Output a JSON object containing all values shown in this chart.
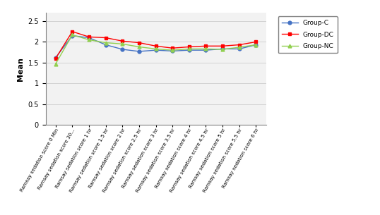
{
  "categories": [
    "Ramsay sedation score 0 Min",
    "Ramsay sedation score 30...",
    "Ramsay sedation score 1 hr",
    "Ramsay sedation score 1.5 hr",
    "Ramsay sedation score 2 hr",
    "Ramsay sedation score 2.5 hr",
    "Ramsay sedation score 3 hr",
    "Ramsay sedation score 3.5 hr",
    "Ramsay sedation score 4 hr",
    "Ramsay sedation score 4.5 hr",
    "Ramsay sedation score 5 hr",
    "Ramsay sedation score 5.5 hr",
    "Ramsay sedation score 6 hr"
  ],
  "group_C": [
    1.62,
    2.15,
    2.1,
    1.93,
    1.82,
    1.77,
    1.8,
    1.78,
    1.8,
    1.8,
    1.83,
    1.83,
    1.93
  ],
  "group_DC": [
    1.6,
    2.25,
    2.12,
    2.1,
    2.02,
    1.98,
    1.9,
    1.85,
    1.88,
    1.9,
    1.9,
    1.93,
    2.0
  ],
  "group_NC": [
    1.47,
    2.17,
    2.05,
    1.98,
    1.95,
    1.88,
    1.83,
    1.8,
    1.83,
    1.83,
    1.82,
    1.87,
    1.93
  ],
  "color_C": "#4472C4",
  "color_DC": "#FF0000",
  "color_NC": "#92D050",
  "ylabel": "Mean",
  "yticks": [
    0,
    0.5,
    1,
    1.5,
    2,
    2.5
  ],
  "ylim": [
    0,
    2.7
  ],
  "legend_labels": [
    "Group-C",
    "Group-DC",
    "Group-NC"
  ],
  "bg_color": "#FFFFFF",
  "plot_bg": "#F2F2F2"
}
